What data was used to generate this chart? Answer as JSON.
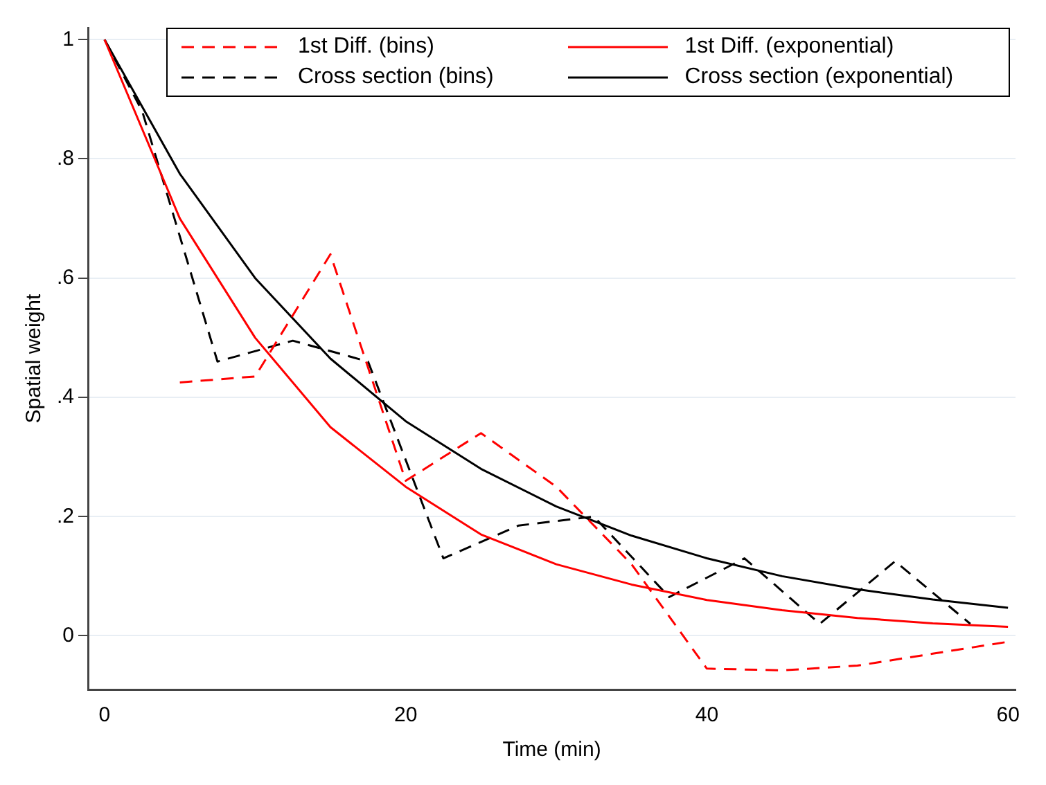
{
  "chart_data": {
    "type": "line",
    "xlabel": "Time (min)",
    "ylabel": "Spatial weight",
    "xlim": [
      -1.1,
      60.5
    ],
    "ylim": [
      -0.09,
      1.02
    ],
    "xticks": [
      0,
      20,
      40,
      60
    ],
    "yticks": [
      {
        "value": 0,
        "label": "0"
      },
      {
        "value": 0.2,
        "label": ".2"
      },
      {
        "value": 0.4,
        "label": ".4"
      },
      {
        "value": 0.6,
        "label": ".6"
      },
      {
        "value": 0.8,
        "label": ".8"
      },
      {
        "value": 1,
        "label": "1"
      }
    ],
    "grid": "y",
    "legend": "top",
    "marker": "none",
    "series": [
      {
        "name": "1st Diff. (bins)",
        "color": "#ff0000",
        "line_style": "dashed",
        "x": [
          5,
          10,
          15,
          20,
          25,
          30,
          35,
          40,
          45,
          50,
          55,
          60
        ],
        "values": [
          0.425,
          0.435,
          0.64,
          0.26,
          0.34,
          0.25,
          0.12,
          -0.055,
          -0.058,
          -0.05,
          -0.03,
          -0.01
        ]
      },
      {
        "name": "1st Diff. (exponential)",
        "color": "#ff0000",
        "line_style": "solid",
        "x": [
          0,
          5,
          10,
          15,
          20,
          25,
          30,
          35,
          40,
          45,
          50,
          55,
          60
        ],
        "values": [
          1,
          0.7,
          0.5,
          0.35,
          0.25,
          0.17,
          0.12,
          0.086,
          0.06,
          0.043,
          0.03,
          0.021,
          0.015
        ]
      },
      {
        "name": "Cross section (bins)",
        "color": "#000000",
        "line_style": "dashed",
        "x": [
          0,
          2.5,
          7.5,
          12.5,
          17.5,
          22.5,
          27.5,
          32.5,
          37.5,
          42.5,
          47.5,
          52.5,
          57.5
        ],
        "values": [
          1,
          0.88,
          0.46,
          0.495,
          0.46,
          0.13,
          0.185,
          0.2,
          0.065,
          0.13,
          0.02,
          0.125,
          0.02
        ]
      },
      {
        "name": "Cross section (exponential)",
        "color": "#000000",
        "line_style": "solid",
        "x": [
          0,
          5,
          10,
          15,
          20,
          25,
          30,
          35,
          40,
          45,
          50,
          55,
          60
        ],
        "values": [
          1,
          0.775,
          0.6,
          0.465,
          0.36,
          0.28,
          0.217,
          0.168,
          0.13,
          0.1,
          0.078,
          0.061,
          0.047
        ]
      }
    ]
  }
}
